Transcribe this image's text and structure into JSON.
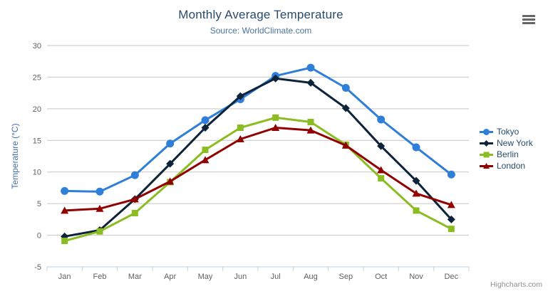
{
  "header": {
    "title": "Monthly Average Temperature",
    "subtitle": "Source: WorldClimate.com"
  },
  "menu": {
    "icon": "hamburger-context-menu"
  },
  "credits": {
    "label": "Highcharts.com"
  },
  "colors": {
    "title": "#274b6d",
    "subtitle": "#4d759e",
    "axis_label": "#606060",
    "y_axis_title": "#4572A7",
    "gridline": "#C6C6C6",
    "axis_line": "#C0D0E0",
    "legend_text": "#274b6d",
    "credits_text": "#909090",
    "menu_icon": "#666666",
    "background": "#ffffff"
  },
  "chart_data": {
    "type": "line",
    "title": "Monthly Average Temperature",
    "subtitle": "Source: WorldClimate.com",
    "xlabel": "",
    "ylabel": "Temperature (°C)",
    "ylim": [
      -5,
      30
    ],
    "ytick_step": 5,
    "ytick_labels": [
      "-5",
      "0",
      "5",
      "10",
      "15",
      "20",
      "25",
      "30"
    ],
    "grid": true,
    "legend_position": "right",
    "categories": [
      "Jan",
      "Feb",
      "Mar",
      "Apr",
      "May",
      "Jun",
      "Jul",
      "Aug",
      "Sep",
      "Oct",
      "Nov",
      "Dec"
    ],
    "series": [
      {
        "name": "Tokyo",
        "color": "#2f7ed8",
        "marker": "circle",
        "values": [
          7.0,
          6.9,
          9.5,
          14.5,
          18.2,
          21.5,
          25.2,
          26.5,
          23.3,
          18.3,
          13.9,
          9.6
        ]
      },
      {
        "name": "New York",
        "color": "#0d233a",
        "marker": "diamond",
        "values": [
          -0.2,
          0.8,
          5.7,
          11.3,
          17.0,
          22.0,
          24.8,
          24.1,
          20.1,
          14.1,
          8.6,
          2.5
        ]
      },
      {
        "name": "Berlin",
        "color": "#8bbc21",
        "marker": "square",
        "values": [
          -0.9,
          0.6,
          3.5,
          8.4,
          13.5,
          17.0,
          18.6,
          17.9,
          14.3,
          9.0,
          3.9,
          1.0
        ]
      },
      {
        "name": "London",
        "color": "#910000",
        "marker": "triangle",
        "values": [
          3.9,
          4.2,
          5.7,
          8.5,
          11.9,
          15.2,
          17.0,
          16.6,
          14.2,
          10.3,
          6.6,
          4.8
        ]
      }
    ]
  }
}
